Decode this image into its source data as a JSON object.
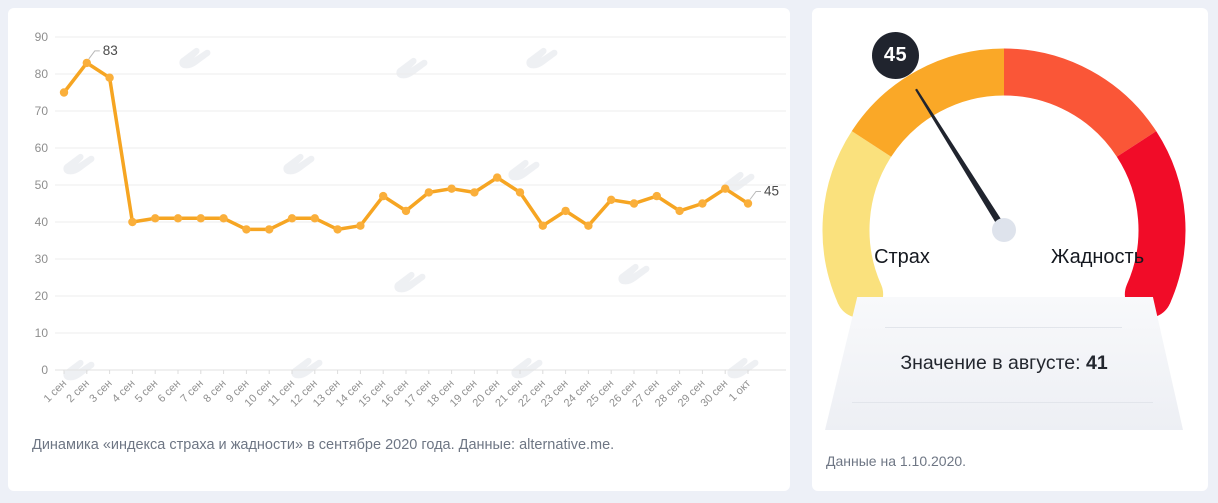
{
  "page": {
    "background": "#EDF0F7",
    "card_background": "#FFFFFF"
  },
  "chart_data": [
    {
      "type": "line",
      "title": "",
      "categories": [
        "1 сен",
        "2 сен",
        "3 сен",
        "4 сен",
        "5 сен",
        "6 сен",
        "7 сен",
        "8 сен",
        "9 сен",
        "10 сен",
        "11 сен",
        "12 сен",
        "13 сен",
        "14 сен",
        "15 сен",
        "16 сен",
        "17 сен",
        "18 сен",
        "19 сен",
        "20 сен",
        "21 сен",
        "22 сен",
        "23 сен",
        "24 сен",
        "25 сен",
        "26 сен",
        "27 сен",
        "28 сен",
        "29 сен",
        "30 сен",
        "1 окт"
      ],
      "values": [
        75,
        83,
        79,
        40,
        41,
        41,
        41,
        41,
        38,
        38,
        41,
        41,
        38,
        39,
        47,
        43,
        48,
        49,
        48,
        52,
        48,
        39,
        43,
        39,
        46,
        45,
        47,
        43,
        45,
        49,
        45
      ],
      "yticks": [
        0,
        10,
        20,
        30,
        40,
        50,
        60,
        70,
        80,
        90
      ],
      "ylim": [
        0,
        90
      ],
      "grid": true,
      "line_color": "#F6A522",
      "point_color": "#FAAF3B",
      "annotations": [
        {
          "index": 1,
          "label": "83"
        },
        {
          "index": 30,
          "label": "45"
        }
      ],
      "caption": "Динамика «индекса страха и жадности» в сентябре 2020 года. Данные: alternative.me."
    },
    {
      "type": "gauge",
      "value": 45,
      "min": 0,
      "max": 100,
      "badge_value": "45",
      "left_label": "Страх",
      "right_label": "Жадность",
      "subtitle_prefix": "Значение в августе:",
      "subtitle_value": "41",
      "caption": "Данные на 1.10.2020.",
      "zone_colors": [
        "#FAE17D",
        "#FAA827",
        "#FA5637",
        "#F10C28"
      ],
      "arc_start_deg": 204,
      "arc_end_deg": -24,
      "needle_angle_deg": 122,
      "needle_color": "#20242E",
      "pivot_color": "#DEE3EC"
    }
  ]
}
